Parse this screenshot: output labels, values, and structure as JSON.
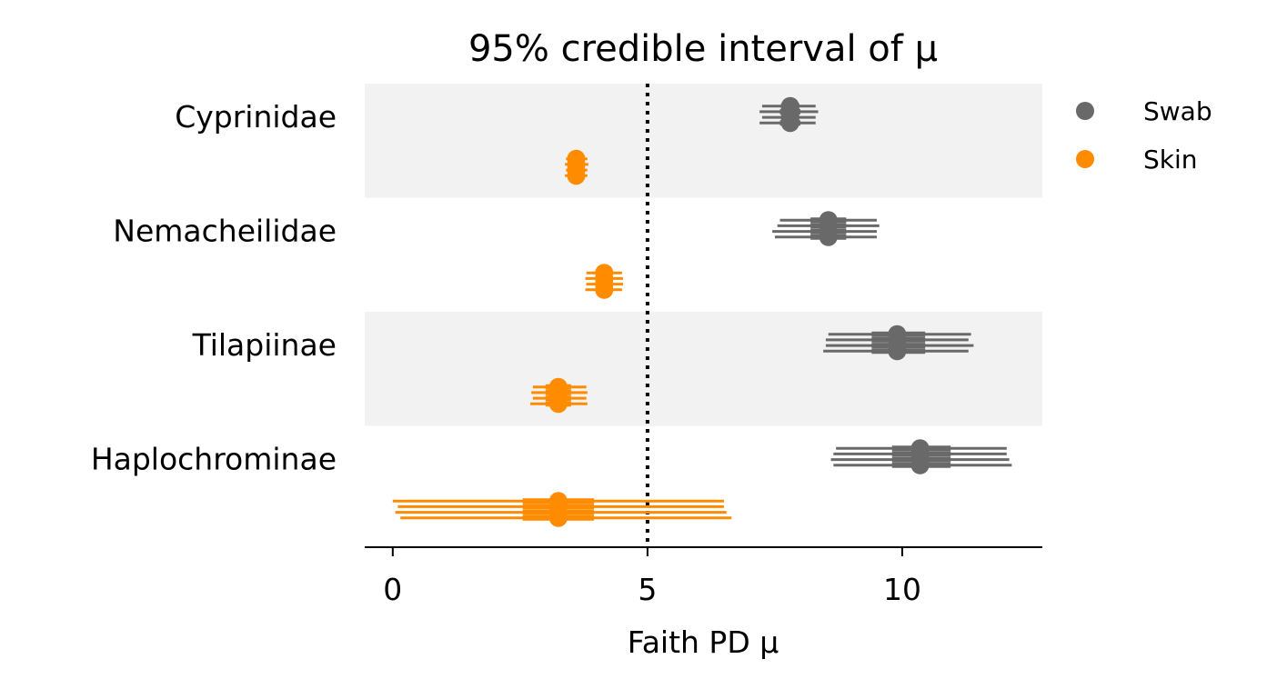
{
  "chart_data": {
    "type": "forest",
    "title": "95% credible interval of μ",
    "xlabel": "Faith PD μ",
    "xlim": [
      -0.55,
      12.75
    ],
    "xticks": [
      0,
      5,
      10
    ],
    "reference_line": 5,
    "categories": [
      "Cyprinidae",
      "Nemacheilidae",
      "Tilapiinae",
      "Haplochrominae"
    ],
    "series": [
      {
        "name": "Swab",
        "color": "#696969",
        "chains": [
          [
            {
              "mean": 7.8,
              "low": 7.25,
              "high": 8.3,
              "q1": 7.62,
              "q3": 7.98
            },
            {
              "mean": 7.8,
              "low": 7.2,
              "high": 8.35,
              "q1": 7.6,
              "q3": 8.0
            },
            {
              "mean": 7.8,
              "low": 7.25,
              "high": 8.3,
              "q1": 7.62,
              "q3": 7.98
            },
            {
              "mean": 7.8,
              "low": 7.2,
              "high": 8.3,
              "q1": 7.6,
              "q3": 8.0
            }
          ],
          [
            {
              "mean": 8.55,
              "low": 7.6,
              "high": 9.5,
              "q1": 8.2,
              "q3": 8.9
            },
            {
              "mean": 8.55,
              "low": 7.55,
              "high": 9.55,
              "q1": 8.2,
              "q3": 8.9
            },
            {
              "mean": 8.55,
              "low": 7.45,
              "high": 9.5,
              "q1": 8.2,
              "q3": 8.9
            },
            {
              "mean": 8.55,
              "low": 7.5,
              "high": 9.5,
              "q1": 8.2,
              "q3": 8.9
            }
          ],
          [
            {
              "mean": 9.9,
              "low": 8.55,
              "high": 11.35,
              "q1": 9.4,
              "q3": 10.45
            },
            {
              "mean": 9.9,
              "low": 8.5,
              "high": 11.3,
              "q1": 9.4,
              "q3": 10.45
            },
            {
              "mean": 9.9,
              "low": 8.5,
              "high": 11.4,
              "q1": 9.4,
              "q3": 10.45
            },
            {
              "mean": 9.9,
              "low": 8.45,
              "high": 11.3,
              "q1": 9.4,
              "q3": 10.45
            }
          ],
          [
            {
              "mean": 10.35,
              "low": 8.7,
              "high": 12.05,
              "q1": 9.8,
              "q3": 10.95
            },
            {
              "mean": 10.35,
              "low": 8.65,
              "high": 12.05,
              "q1": 9.8,
              "q3": 10.95
            },
            {
              "mean": 10.35,
              "low": 8.6,
              "high": 12.1,
              "q1": 9.8,
              "q3": 10.95
            },
            {
              "mean": 10.35,
              "low": 8.65,
              "high": 12.15,
              "q1": 9.8,
              "q3": 10.95
            }
          ]
        ]
      },
      {
        "name": "Skin",
        "color": "#ff8c00",
        "chains": [
          [
            {
              "mean": 3.6,
              "low": 3.4,
              "high": 3.82,
              "q1": 3.52,
              "q3": 3.7
            },
            {
              "mean": 3.6,
              "low": 3.38,
              "high": 3.84,
              "q1": 3.52,
              "q3": 3.7
            },
            {
              "mean": 3.6,
              "low": 3.4,
              "high": 3.82,
              "q1": 3.52,
              "q3": 3.7
            },
            {
              "mean": 3.6,
              "low": 3.38,
              "high": 3.82,
              "q1": 3.52,
              "q3": 3.7
            }
          ],
          [
            {
              "mean": 4.15,
              "low": 3.8,
              "high": 4.5,
              "q1": 4.0,
              "q3": 4.3
            },
            {
              "mean": 4.15,
              "low": 3.78,
              "high": 4.52,
              "q1": 4.0,
              "q3": 4.3
            },
            {
              "mean": 4.15,
              "low": 3.8,
              "high": 4.52,
              "q1": 4.0,
              "q3": 4.3
            },
            {
              "mean": 4.15,
              "low": 3.78,
              "high": 4.5,
              "q1": 4.0,
              "q3": 4.3
            }
          ],
          [
            {
              "mean": 3.25,
              "low": 2.75,
              "high": 3.8,
              "q1": 3.0,
              "q3": 3.5
            },
            {
              "mean": 3.25,
              "low": 2.72,
              "high": 3.82,
              "q1": 3.0,
              "q3": 3.5
            },
            {
              "mean": 3.25,
              "low": 2.75,
              "high": 3.8,
              "q1": 3.0,
              "q3": 3.5
            },
            {
              "mean": 3.25,
              "low": 2.7,
              "high": 3.82,
              "q1": 3.0,
              "q3": 3.5
            }
          ],
          [
            {
              "mean": 3.25,
              "low": 0.0,
              "high": 6.5,
              "q1": 2.55,
              "q3": 3.95
            },
            {
              "mean": 3.25,
              "low": 0.1,
              "high": 6.5,
              "q1": 2.55,
              "q3": 3.95
            },
            {
              "mean": 3.25,
              "low": 0.05,
              "high": 6.55,
              "q1": 2.55,
              "q3": 3.95
            },
            {
              "mean": 3.25,
              "low": 0.15,
              "high": 6.65,
              "q1": 2.55,
              "q3": 3.95
            }
          ]
        ]
      }
    ],
    "band_color": "#f2f2f2",
    "legend_position": "right-top",
    "grid": false
  }
}
